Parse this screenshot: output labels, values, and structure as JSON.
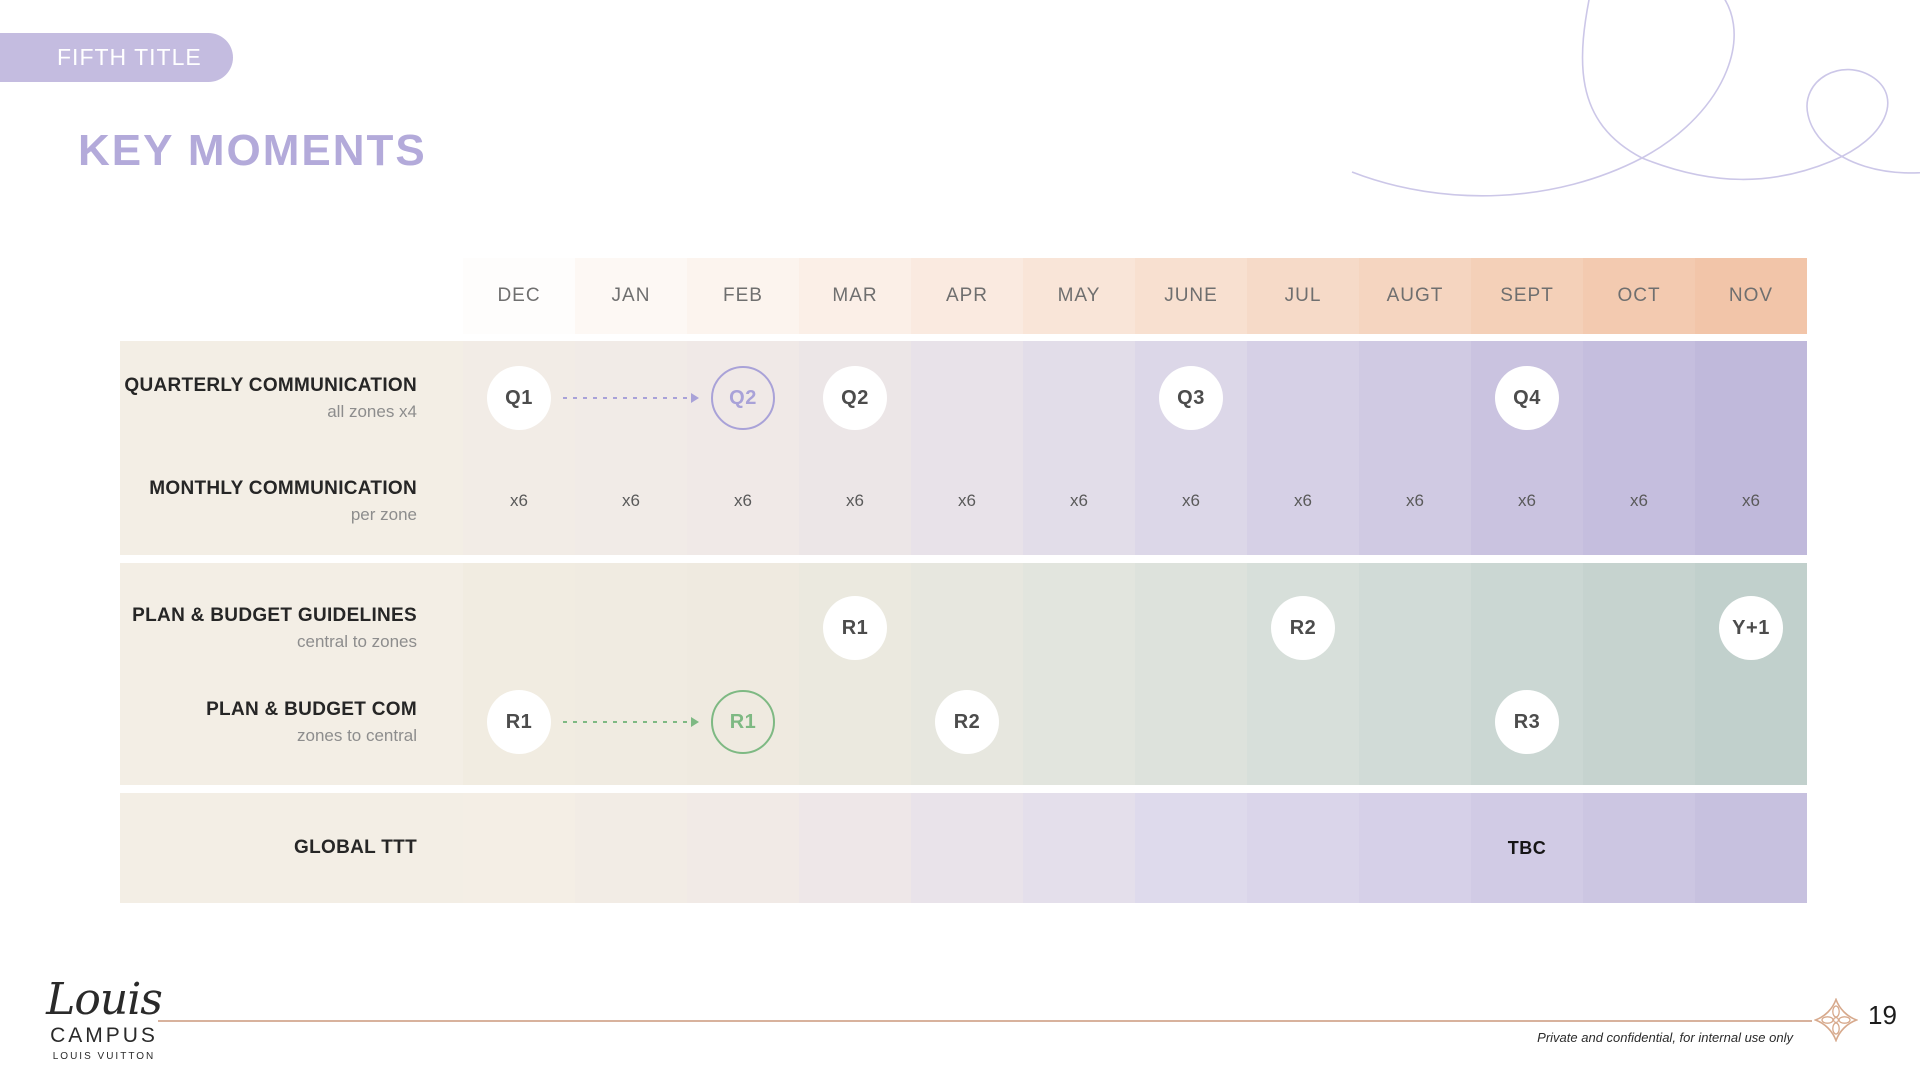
{
  "slide": {
    "tag": "FIFTH TITLE",
    "title": "KEY MOMENTS",
    "page_number": "19",
    "footnote": "Private and confidential, for internal use only",
    "logo": {
      "script": "Louis",
      "campus": "CAMPUS",
      "brand": "LOUIS VUITTON"
    }
  },
  "colors": {
    "badge": "#c4bce0",
    "title": "#b3aada",
    "swirl": "#ccc7e8",
    "label_column_bg": "#f3eee5",
    "month_text": "#6f6f6f",
    "label_text": "#262626",
    "sublabel_text": "#8d8d8d",
    "marker_text": "#4c4c4c",
    "lavender_accent": "#a9a2d8",
    "green_accent": "#7eb983",
    "footer_line": "#d8b29d",
    "footer_icon": "#d7a98c"
  },
  "timeline": {
    "months": [
      "DEC",
      "JAN",
      "FEB",
      "MAR",
      "APR",
      "MAY",
      "JUNE",
      "JUL",
      "AUGT",
      "SEPT",
      "OCT",
      "NOV"
    ],
    "header_colors": [
      "#fefdfc",
      "#fdf8f4",
      "#fcf4ee",
      "#fbefe7",
      "#faeae0",
      "#f9e5d8",
      "#f8e0d0",
      "#f6dac8",
      "#f5d5c0",
      "#f4d0b8",
      "#f3cab0",
      "#f2c5a9"
    ],
    "sections": [
      {
        "name": "communication",
        "column_colors": [
          "#f2ece6",
          "#f1ebe7",
          "#f0e9e7",
          "#ece6e7",
          "#e8e2e9",
          "#e2dde9",
          "#dcd7e8",
          "#d6d0e6",
          "#d0cae3",
          "#cac3e0",
          "#c5bede",
          "#c0b9db"
        ],
        "rows": [
          {
            "label": "QUARTERLY COMMUNICATION",
            "sublabel": "all zones x4",
            "markers": [
              {
                "col": 0,
                "text": "Q1",
                "style": "filled"
              },
              {
                "col": 2,
                "text": "Q2",
                "style": "outlined",
                "accent": "lavender"
              },
              {
                "col": 3,
                "text": "Q2",
                "style": "filled"
              },
              {
                "col": 6,
                "text": "Q3",
                "style": "filled"
              },
              {
                "col": 9,
                "text": "Q4",
                "style": "filled"
              }
            ],
            "arrow": {
              "from": 0,
              "to": 2,
              "accent": "lavender"
            }
          },
          {
            "label": "MONTHLY COMMUNICATION",
            "sublabel": "per zone",
            "cells": [
              "x6",
              "x6",
              "x6",
              "x6",
              "x6",
              "x6",
              "x6",
              "x6",
              "x6",
              "x6",
              "x6",
              "x6"
            ]
          }
        ]
      },
      {
        "name": "plan-budget",
        "column_colors": [
          "#f1ece1",
          "#f0ebe1",
          "#efeae0",
          "#ebe9df",
          "#e7e7df",
          "#e2e5de",
          "#dde2dc",
          "#d7dfda",
          "#d1dbd7",
          "#cbd7d3",
          "#c6d3cf",
          "#c1d0cc"
        ],
        "rows": [
          {
            "label": "PLAN & BUDGET GUIDELINES",
            "sublabel": "central to zones",
            "markers": [
              {
                "col": 3,
                "text": "R1",
                "style": "filled"
              },
              {
                "col": 7,
                "text": "R2",
                "style": "filled"
              },
              {
                "col": 11,
                "text": "Y+1",
                "style": "filled"
              }
            ]
          },
          {
            "label": "PLAN & BUDGET COM",
            "sublabel": "zones to central",
            "markers": [
              {
                "col": 0,
                "text": "R1",
                "style": "filled"
              },
              {
                "col": 2,
                "text": "R1",
                "style": "outlined",
                "accent": "green"
              },
              {
                "col": 4,
                "text": "R2",
                "style": "filled"
              },
              {
                "col": 9,
                "text": "R3",
                "style": "filled"
              }
            ],
            "arrow": {
              "from": 0,
              "to": 2,
              "accent": "green"
            }
          }
        ]
      },
      {
        "name": "global-ttt",
        "column_colors": [
          "#f4eee5",
          "#f2ece5",
          "#f1eae6",
          "#eee7e8",
          "#e9e3ea",
          "#e4dfeb",
          "#dedaec",
          "#dad5ea",
          "#d6d0e8",
          "#d1cbe5",
          "#ccc6e2",
          "#c7c1df"
        ],
        "rows": [
          {
            "label": "GLOBAL TTT",
            "sublabel": "",
            "markers": [
              {
                "col": 9,
                "text": "TBC",
                "style": "plain-text"
              }
            ]
          }
        ]
      }
    ]
  }
}
